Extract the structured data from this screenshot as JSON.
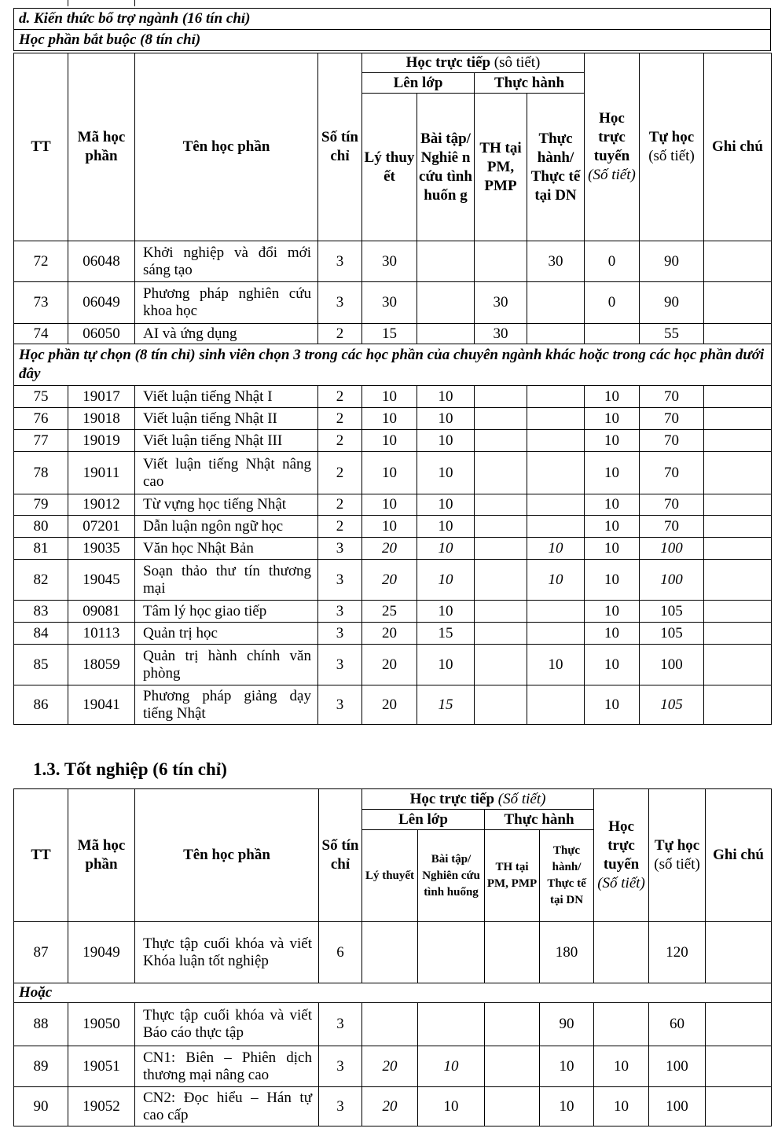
{
  "section_d": "d. Kiến thức bổ trợ ngành (16 tín chỉ)",
  "required": "Học phần bắt buộc (8 tín chỉ)",
  "header1": {
    "tt": "TT",
    "code": "Mã học phần",
    "name": "Tên học phần",
    "credits": "Số tín chỉ",
    "direct": "Học trực tiếp",
    "direct_unit": "(sô tiết)",
    "class": "Lên lớp",
    "practice": "Thực hành",
    "theory": "Lý thuy ết",
    "exercise": "Bài tập/ Nghiê n cứu tình huốn g",
    "th_pm": "TH tại PM, PMP",
    "th_dn": "Thực hành/ Thực tế tại DN",
    "online": "Học trực tuyến",
    "online_unit": "(Số tiết)",
    "self": "Tự học",
    "self_unit": "(số tiết)",
    "note": "Ghi chú"
  },
  "rows1": [
    {
      "c": [
        "72",
        "06048",
        "Khởi nghiệp và đổi mới sáng tạo",
        "3",
        "30",
        "",
        "",
        "30",
        "0",
        "90",
        ""
      ],
      "h": 52
    },
    {
      "c": [
        "73",
        "06049",
        "Phương pháp nghiên cứu khoa học",
        "3",
        "30",
        "",
        "30",
        "",
        "0",
        "90",
        ""
      ],
      "h": 53
    },
    {
      "c": [
        "74",
        "06050",
        "AI và ứng dụng",
        "2",
        "15",
        "",
        "30",
        "",
        "",
        "55",
        ""
      ],
      "h": 26
    },
    {
      "section": "Học phần tự chọn (8 tín chỉ) sinh viên chọn 3 trong các học phần của chuyên ngành khác hoặc trong các học phần dưới đây",
      "h": 53
    },
    {
      "c": [
        "75",
        "19017",
        "Viết luận tiếng Nhật I",
        "2",
        "10",
        "10",
        "",
        "",
        "10",
        "70",
        ""
      ],
      "h": 28
    },
    {
      "c": [
        "76",
        "19018",
        "Viết luận tiếng Nhật II",
        "2",
        "10",
        "10",
        "",
        "",
        "10",
        "70",
        ""
      ],
      "h": 28
    },
    {
      "c": [
        "77",
        "19019",
        "Viết luận tiếng Nhật III",
        "2",
        "10",
        "10",
        "",
        "",
        "10",
        "70",
        ""
      ],
      "h": 28
    },
    {
      "c": [
        "78",
        "19011",
        "Viết luận tiếng Nhật nâng cao",
        "2",
        "10",
        "10",
        "",
        "",
        "10",
        "70",
        ""
      ],
      "h": 54
    },
    {
      "c": [
        "79",
        "19012",
        "Từ vựng học tiếng Nhật",
        "2",
        "10",
        "10",
        "",
        "",
        "10",
        "70",
        ""
      ],
      "h": 27
    },
    {
      "c": [
        "80",
        "07201",
        "Dẫn luận ngôn ngữ học",
        "2",
        "10",
        "10",
        "",
        "",
        "10",
        "70",
        ""
      ],
      "h": 28
    },
    {
      "c": [
        "81",
        "19035",
        "Văn học Nhật Bản",
        "3",
        "20",
        "10",
        "",
        "10",
        "10",
        "100",
        ""
      ],
      "h": 28,
      "it": [
        4,
        5,
        7,
        9
      ]
    },
    {
      "c": [
        "82",
        "19045",
        "Soạn thảo thư tín thương mại",
        "3",
        "20",
        "10",
        "",
        "10",
        "10",
        "100",
        ""
      ],
      "h": 52,
      "it": [
        4,
        5,
        7,
        9
      ]
    },
    {
      "c": [
        "83",
        "09081",
        "Tâm lý học giao tiếp",
        "3",
        "25",
        "10",
        "",
        "",
        "10",
        "105",
        ""
      ],
      "h": 28
    },
    {
      "c": [
        "84",
        "10113",
        "Quản trị học",
        "3",
        "20",
        "15",
        "",
        "",
        "10",
        "105",
        ""
      ],
      "h": 28
    },
    {
      "c": [
        "85",
        "18059",
        "Quản trị hành chính văn phòng",
        "3",
        "20",
        "10",
        "",
        "10",
        "10",
        "100",
        ""
      ],
      "h": 52
    },
    {
      "c": [
        "86",
        "19041",
        "Phương pháp giảng dạy tiếng Nhật",
        "3",
        "20",
        "15",
        "",
        "",
        "10",
        "105",
        ""
      ],
      "h": 50,
      "it": [
        5,
        9
      ]
    }
  ],
  "graduation_title": "1.3. Tốt nghiệp (6 tín chỉ)",
  "header2": {
    "tt": "TT",
    "code": "Mã học phần",
    "name": "Tên học phần",
    "credits": "Số tín chỉ",
    "direct": "Học trực tiếp",
    "direct_unit": "(Số tiết)",
    "class": "Lên lớp",
    "practice": "Thực hành",
    "theory": "Lý thuyết",
    "exercise": "Bài tập/ Nghiên cứu tình huống",
    "th_pm": "TH tại PM, PMP",
    "th_dn": "Thực hành/ Thực tế tại DN",
    "online": "Học trực tuyến",
    "online_unit": "(Số tiết)",
    "self": "Tự học",
    "self_unit": "(số tiết)",
    "note": "Ghi chú"
  },
  "rows2": [
    {
      "c": [
        "87",
        "19049",
        "Thực tập cuối khóa và viết Khóa luận tốt nghiệp",
        "6",
        "",
        "",
        "",
        "180",
        "",
        "120",
        ""
      ],
      "h": 78
    },
    {
      "section": "Hoặc",
      "h": 25
    },
    {
      "c": [
        "88",
        "19050",
        "Thực tập cuối khóa và viết Báo cáo thực tập",
        "3",
        "",
        "",
        "",
        "90",
        "",
        "60",
        ""
      ],
      "h": 55
    },
    {
      "c": [
        "89",
        "19051",
        "CN1: Biên – Phiên dịch thương mại nâng cao",
        "3",
        "20",
        "10",
        "",
        "10",
        "10",
        "100",
        ""
      ],
      "h": 52,
      "it": [
        4,
        5
      ]
    },
    {
      "c": [
        "90",
        "19052",
        "CN2: Đọc hiểu – Hán tự cao cấp",
        "3",
        "20",
        "10",
        "",
        "10",
        "10",
        "100",
        ""
      ],
      "h": 50,
      "it": [
        4
      ]
    }
  ]
}
